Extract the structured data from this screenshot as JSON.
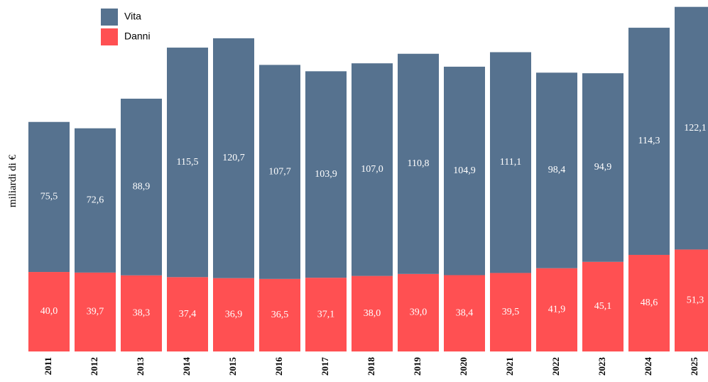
{
  "chart_data": {
    "type": "stacked_bar",
    "y_label": "miliardi di €",
    "categories": [
      "2011",
      "2012",
      "2013",
      "2014",
      "2015",
      "2016",
      "2017",
      "2018",
      "2019",
      "2020",
      "2021",
      "2022",
      "2023",
      "2024",
      "2025"
    ],
    "ylim": [
      0,
      174
    ],
    "series": [
      {
        "name": "Danni",
        "color": "#ff5052",
        "values": [
          40.0,
          39.7,
          38.3,
          37.4,
          36.9,
          36.5,
          37.1,
          38.0,
          39.0,
          38.4,
          39.5,
          41.9,
          45.1,
          48.6,
          51.3
        ],
        "value_labels": [
          "40,0",
          "39,7",
          "38,3",
          "37,4",
          "36,9",
          "36,5",
          "37,1",
          "38,0",
          "39,0",
          "38,4",
          "39,5",
          "41,9",
          "45,1",
          "48,6",
          "51,3"
        ]
      },
      {
        "name": "Vita",
        "color": "#56728f",
        "values": [
          75.5,
          72.6,
          88.9,
          115.5,
          120.7,
          107.7,
          103.9,
          107.0,
          110.8,
          104.9,
          111.1,
          98.4,
          94.9,
          114.3,
          122.1
        ],
        "value_labels": [
          "75,5",
          "72,6",
          "88,9",
          "115,5",
          "120,7",
          "107,7",
          "103,9",
          "107,0",
          "110,8",
          "104,9",
          "111,1",
          "98,4",
          "94,9",
          "114,3",
          "122,1"
        ]
      }
    ]
  }
}
